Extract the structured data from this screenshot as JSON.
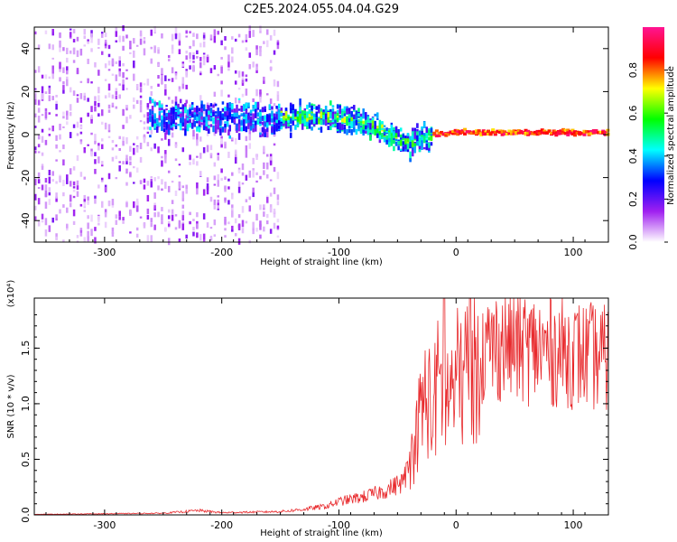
{
  "title": "C2E5.2024.055.04.04.G29",
  "chart_data": [
    {
      "type": "heatmap",
      "panel": "spectrogram",
      "xlabel": "Height of straight line (km)",
      "ylabel": "Frequency (Hz)",
      "xlim": [
        -360,
        130
      ],
      "ylim": [
        -50,
        50
      ],
      "xticks": [
        -300,
        -200,
        -100,
        0,
        100
      ],
      "xtick_labels": [
        "-300",
        "-200",
        "-100",
        "0",
        "100"
      ],
      "yticks": [
        -40,
        -20,
        0,
        20,
        40
      ],
      "ytick_labels": [
        "-40",
        "-20",
        "0",
        "20",
        "40"
      ],
      "colorbar": {
        "label": "Normalized spectral amplitude",
        "range": [
          0,
          1
        ],
        "ticks": [
          0,
          0.2,
          0.4,
          0.6,
          0.8
        ],
        "tick_labels": [
          "0.0",
          "0.2",
          "0.4",
          "0.6",
          "0.8"
        ],
        "colormap": [
          "#ffffff",
          "#a020f0",
          "#0000ff",
          "#00ffff",
          "#00ff00",
          "#ffff00",
          "#ff0000",
          "#ff1493"
        ]
      },
      "regions": [
        {
          "x": [
            -360,
            -150
          ],
          "freq_spread": 50,
          "amplitude": 0.12
        },
        {
          "x": [
            -262,
            -150
          ],
          "freq_spread": 12,
          "amplitude": 0.3
        },
        {
          "x": [
            -150,
            -20
          ],
          "freq_spread": 10,
          "amplitude": 0.35
        },
        {
          "x": [
            -20,
            130
          ],
          "freq_spread": 2,
          "amplitude": 0.85
        }
      ],
      "dominant_line": {
        "x": [
          -100,
          -80,
          -60,
          -40,
          -20,
          0,
          130
        ],
        "freq": [
          8,
          6,
          0,
          -4,
          0,
          1,
          1
        ]
      }
    },
    {
      "type": "line",
      "panel": "snr",
      "xlabel": "Height of straight line (km)",
      "ylabel": "SNR (10 * v/v)",
      "scale_label": "(x10⁴)",
      "xlim": [
        -360,
        130
      ],
      "ylim": [
        0,
        1.95
      ],
      "xticks": [
        -300,
        -200,
        -100,
        0,
        100
      ],
      "xtick_labels": [
        "-300",
        "-200",
        "-100",
        "0",
        "100"
      ],
      "yticks": [
        0,
        0.5,
        1.0,
        1.5
      ],
      "ytick_labels": [
        "0.0",
        "0.5",
        "1.0",
        "1.5"
      ],
      "series": [
        {
          "color": "#e8282b",
          "x": [
            -360,
            -300,
            -250,
            -220,
            -200,
            -150,
            -130,
            -110,
            -100,
            -80,
            -60,
            -45,
            -40,
            -35,
            -30,
            -25,
            -20,
            -15,
            -10,
            -5,
            0,
            10,
            20,
            30,
            40,
            60,
            80,
            100,
            130
          ],
          "y": [
            0.005,
            0.01,
            0.015,
            0.04,
            0.02,
            0.03,
            0.05,
            0.08,
            0.12,
            0.16,
            0.22,
            0.3,
            0.45,
            0.65,
            0.95,
            1.1,
            0.9,
            1.2,
            1.0,
            1.1,
            1.2,
            1.3,
            1.45,
            1.5,
            1.55,
            1.5,
            1.48,
            1.45,
            1.4
          ]
        }
      ]
    }
  ]
}
